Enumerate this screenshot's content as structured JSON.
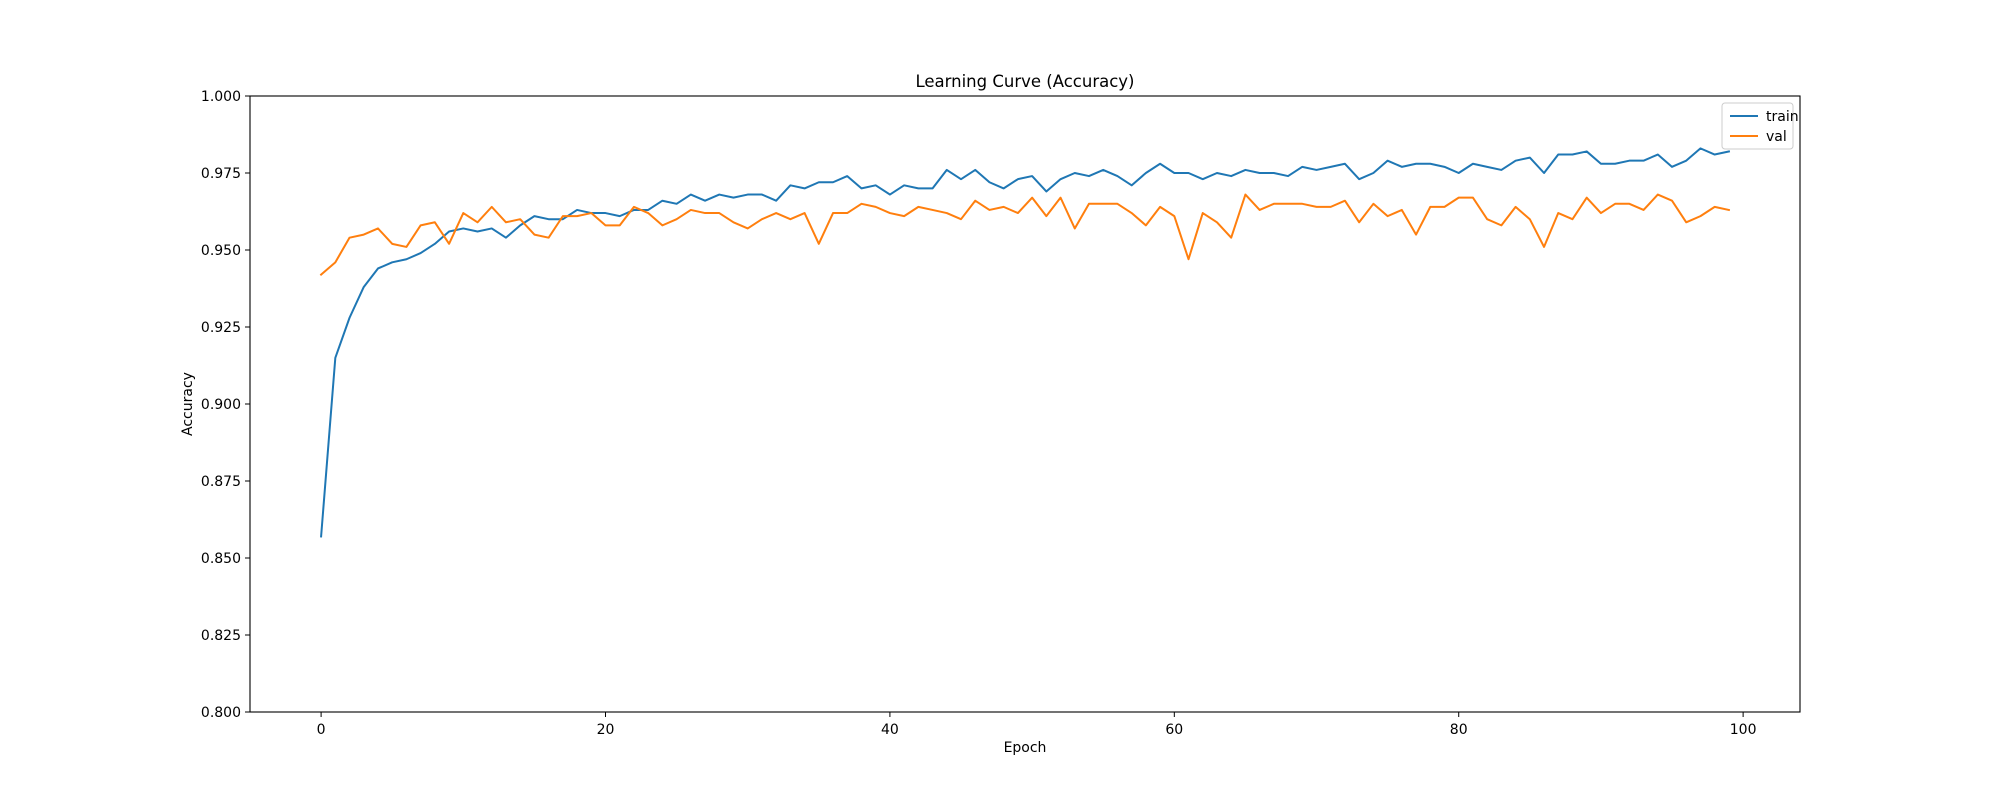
{
  "chart_data": {
    "type": "line",
    "title": "Learning Curve (Accuracy)",
    "xlabel": "Epoch",
    "ylabel": "Accuracy",
    "xlim": [
      -5,
      104
    ],
    "ylim": [
      0.8,
      1.0
    ],
    "x_ticks": [
      0,
      20,
      40,
      60,
      80,
      100
    ],
    "y_ticks": [
      0.8,
      0.825,
      0.85,
      0.875,
      0.9,
      0.925,
      0.95,
      0.975,
      1.0
    ],
    "y_tick_decimals": 3,
    "grid": false,
    "legend_position": "top-right",
    "series": [
      {
        "name": "train",
        "color": "#1f77b4",
        "values": [
          0.857,
          0.915,
          0.928,
          0.938,
          0.944,
          0.946,
          0.947,
          0.949,
          0.952,
          0.956,
          0.957,
          0.956,
          0.957,
          0.954,
          0.958,
          0.961,
          0.96,
          0.96,
          0.963,
          0.962,
          0.962,
          0.961,
          0.963,
          0.963,
          0.966,
          0.965,
          0.968,
          0.966,
          0.968,
          0.967,
          0.968,
          0.968,
          0.966,
          0.971,
          0.97,
          0.972,
          0.972,
          0.974,
          0.97,
          0.971,
          0.968,
          0.971,
          0.97,
          0.97,
          0.976,
          0.973,
          0.976,
          0.972,
          0.97,
          0.973,
          0.974,
          0.969,
          0.973,
          0.975,
          0.974,
          0.976,
          0.974,
          0.971,
          0.975,
          0.978,
          0.975,
          0.975,
          0.973,
          0.975,
          0.974,
          0.976,
          0.975,
          0.975,
          0.974,
          0.977,
          0.976,
          0.977,
          0.978,
          0.973,
          0.975,
          0.979,
          0.977,
          0.978,
          0.978,
          0.977,
          0.975,
          0.978,
          0.977,
          0.976,
          0.979,
          0.98,
          0.975,
          0.981,
          0.981,
          0.982,
          0.978,
          0.978,
          0.979,
          0.979,
          0.981,
          0.977,
          0.979,
          0.983,
          0.981,
          0.982
        ]
      },
      {
        "name": "val",
        "color": "#ff7f0e",
        "values": [
          0.942,
          0.946,
          0.954,
          0.955,
          0.957,
          0.952,
          0.951,
          0.958,
          0.959,
          0.952,
          0.962,
          0.959,
          0.964,
          0.959,
          0.96,
          0.955,
          0.954,
          0.961,
          0.961,
          0.962,
          0.958,
          0.958,
          0.964,
          0.962,
          0.958,
          0.96,
          0.963,
          0.962,
          0.962,
          0.959,
          0.957,
          0.96,
          0.962,
          0.96,
          0.962,
          0.952,
          0.962,
          0.962,
          0.965,
          0.964,
          0.962,
          0.961,
          0.964,
          0.963,
          0.962,
          0.96,
          0.966,
          0.963,
          0.964,
          0.962,
          0.967,
          0.961,
          0.967,
          0.957,
          0.965,
          0.965,
          0.965,
          0.962,
          0.958,
          0.964,
          0.961,
          0.947,
          0.962,
          0.959,
          0.954,
          0.968,
          0.963,
          0.965,
          0.965,
          0.965,
          0.964,
          0.964,
          0.966,
          0.959,
          0.965,
          0.961,
          0.963,
          0.955,
          0.964,
          0.964,
          0.967,
          0.967,
          0.96,
          0.958,
          0.964,
          0.96,
          0.951,
          0.962,
          0.96,
          0.967,
          0.962,
          0.965,
          0.965,
          0.963,
          0.968,
          0.966,
          0.959,
          0.961,
          0.964,
          0.963
        ]
      }
    ]
  }
}
